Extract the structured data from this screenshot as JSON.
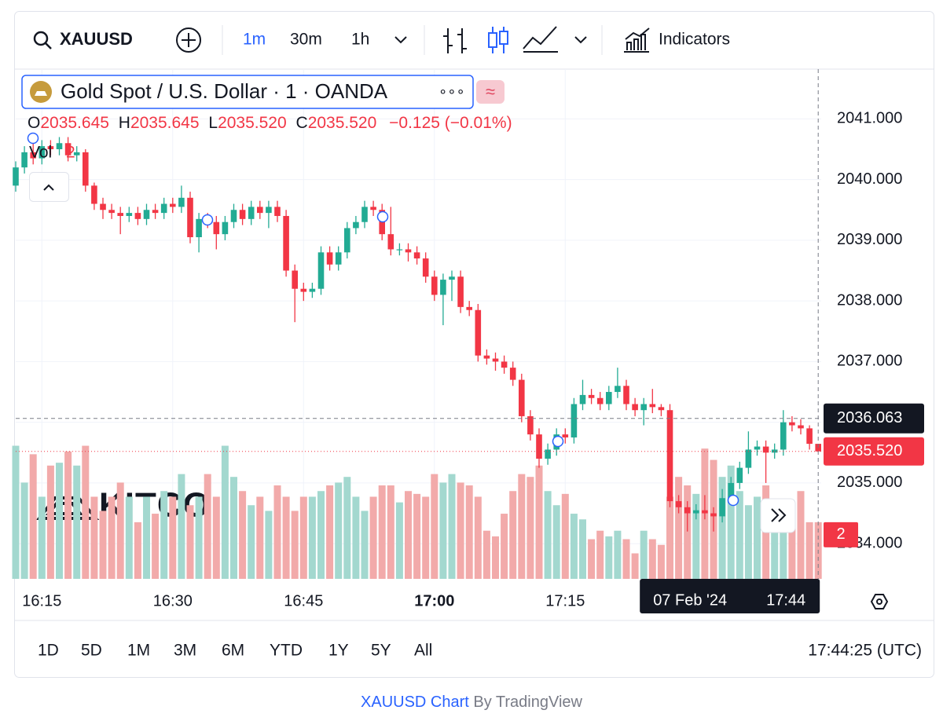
{
  "toolbar": {
    "symbol": "XAUUSD",
    "intervals": [
      "1m",
      "30m",
      "1h"
    ],
    "indicators": "Indicators"
  },
  "legend": {
    "title": "Gold Spot / U.S. Dollar · 1 · OANDA",
    "more": "∘∘∘",
    "ohlc": [
      {
        "label": "O",
        "value": "2035.645"
      },
      {
        "label": "H",
        "value": "2035.645"
      },
      {
        "label": "L",
        "value": "2035.520"
      },
      {
        "label": "C",
        "value": "2035.520"
      }
    ],
    "change": "−0.125 (−0.01%)",
    "volume_label": "Vol"
  },
  "watermark": "KITCO",
  "chart_data": {
    "type": "candlestick",
    "up_color": "#22ab94",
    "down_color": "#f23645",
    "volume_up_color": "#a3d8cf",
    "volume_down_color": "#f2aaaa",
    "ylim": [
      2033.42,
      2041.82
    ],
    "yticks": [
      {
        "value": 2034,
        "label": "2034.000"
      },
      {
        "value": 2035,
        "label": "2035.000"
      },
      {
        "value": 2036,
        "label": "2036.000"
      },
      {
        "value": 2037,
        "label": "2037.000"
      },
      {
        "value": 2038,
        "label": "2038.000"
      },
      {
        "value": 2039,
        "label": "2039.000"
      },
      {
        "value": 2040,
        "label": "2040.000"
      },
      {
        "value": 2041,
        "label": "2041.000"
      }
    ],
    "vlim": [
      0,
      18
    ],
    "categories": [
      null,
      null,
      null,
      "16:15",
      null,
      null,
      null,
      null,
      null,
      null,
      null,
      null,
      null,
      null,
      null,
      null,
      null,
      null,
      "16:30",
      null,
      null,
      null,
      null,
      null,
      null,
      null,
      null,
      null,
      null,
      null,
      null,
      null,
      null,
      "16:45",
      null,
      null,
      null,
      null,
      null,
      null,
      null,
      null,
      null,
      null,
      null,
      null,
      null,
      null,
      "17:00",
      null,
      null,
      null,
      null,
      null,
      null,
      null,
      null,
      null,
      null,
      null,
      null,
      null,
      null,
      "17:15",
      null,
      null,
      null,
      null,
      null,
      null,
      null,
      null,
      null,
      null,
      null,
      null,
      null,
      null,
      null,
      null,
      null,
      null,
      null,
      null,
      null,
      null,
      null,
      null,
      null,
      null,
      null,
      null,
      null
    ],
    "open": [
      2039.9,
      2040.2,
      2040.45,
      2040.35,
      2040.55,
      2040.5,
      2040.6,
      2040.4,
      2040.45,
      2039.9,
      2039.6,
      2039.5,
      2039.45,
      2039.4,
      2039.45,
      2039.35,
      2039.5,
      2039.45,
      2039.6,
      2039.55,
      2039.7,
      2039.05,
      2039.35,
      2039.3,
      2039.1,
      2039.3,
      2039.5,
      2039.35,
      2039.55,
      2039.45,
      2039.55,
      2039.4,
      2038.5,
      2038.2,
      2038.15,
      2038.2,
      2038.8,
      2038.6,
      2038.8,
      2039.2,
      2039.3,
      2039.55,
      2039.5,
      2039.1,
      2038.85,
      2038.85,
      2038.8,
      2038.7,
      2038.4,
      2038.1,
      2038.35,
      2038.4,
      2037.9,
      2037.85,
      2037.1,
      2037.05,
      2037.0,
      2036.9,
      2036.7,
      2036.1,
      2035.8,
      2035.4,
      2035.55,
      2035.8,
      2035.75,
      2036.3,
      2036.45,
      2036.4,
      2036.3,
      2036.5,
      2036.6,
      2036.3,
      2036.2,
      2036.3,
      2036.25,
      2036.2,
      2034.7,
      2034.6,
      2034.5,
      2034.55,
      2034.5,
      2034.45,
      2034.75,
      2035.0,
      2035.25,
      2035.55,
      2035.6,
      2035.5,
      2035.55,
      2036.0,
      2035.95,
      2035.9,
      2035.645
    ],
    "high": [
      2040.3,
      2040.55,
      2040.75,
      2040.65,
      2040.65,
      2040.7,
      2040.7,
      2040.55,
      2040.5,
      2039.95,
      2039.7,
      2039.6,
      2039.55,
      2039.55,
      2039.55,
      2039.6,
      2039.6,
      2039.7,
      2039.7,
      2039.9,
      2039.8,
      2039.45,
      2039.45,
      2039.4,
      2039.4,
      2039.6,
      2039.6,
      2039.65,
      2039.65,
      2039.65,
      2039.65,
      2039.5,
      2038.6,
      2038.3,
      2038.3,
      2038.9,
      2038.9,
      2038.9,
      2039.3,
      2039.4,
      2039.65,
      2039.65,
      2039.6,
      2039.55,
      2038.95,
      2038.95,
      2038.9,
      2038.8,
      2038.5,
      2038.45,
      2038.5,
      2038.5,
      2038.0,
      2037.95,
      2037.2,
      2037.15,
      2037.1,
      2037.0,
      2036.8,
      2036.2,
      2035.9,
      2035.65,
      2035.9,
      2035.9,
      2036.4,
      2036.7,
      2036.55,
      2036.5,
      2036.6,
      2036.9,
      2036.7,
      2036.4,
      2036.4,
      2036.55,
      2036.3,
      2036.3,
      2034.8,
      2034.7,
      2034.65,
      2034.8,
      2034.6,
      2034.9,
      2035.1,
      2035.35,
      2035.85,
      2035.7,
      2035.7,
      2035.65,
      2036.2,
      2036.1,
      2036.05,
      2035.95,
      2035.645
    ],
    "low": [
      2039.8,
      2040.1,
      2040.25,
      2040.25,
      2040.4,
      2040.4,
      2040.3,
      2040.3,
      2039.8,
      2039.5,
      2039.35,
      2039.35,
      2039.1,
      2039.3,
      2039.25,
      2039.25,
      2039.35,
      2039.35,
      2039.45,
      2039.45,
      2038.95,
      2038.8,
      2039.2,
      2038.85,
      2039.0,
      2039.2,
      2039.25,
      2039.25,
      2039.35,
      2039.2,
      2039.3,
      2038.4,
      2037.65,
      2038.0,
      2038.05,
      2038.1,
      2038.5,
      2038.5,
      2038.7,
      2039.1,
      2039.2,
      2039.4,
      2039.0,
      2038.75,
      2038.75,
      2038.65,
      2038.6,
      2038.3,
      2038.0,
      2037.6,
      2038.0,
      2037.8,
      2037.75,
      2037.0,
      2036.95,
      2036.85,
      2036.8,
      2036.6,
      2036.0,
      2035.7,
      2035.25,
      2035.3,
      2035.45,
      2035.65,
      2035.65,
      2036.2,
      2036.3,
      2036.2,
      2036.2,
      2036.4,
      2036.2,
      2036.1,
      2035.95,
      2036.15,
      2036.1,
      2034.6,
      2034.5,
      2034.2,
      2034.4,
      2034.4,
      2034.2,
      2034.35,
      2034.65,
      2034.9,
      2035.15,
      2035.45,
      2035.0,
      2035.4,
      2035.45,
      2035.85,
      2035.8,
      2035.55,
      2035.52
    ],
    "close": [
      2040.2,
      2040.45,
      2040.35,
      2040.55,
      2040.5,
      2040.6,
      2040.4,
      2040.45,
      2039.9,
      2039.6,
      2039.5,
      2039.45,
      2039.4,
      2039.45,
      2039.35,
      2039.5,
      2039.45,
      2039.6,
      2039.55,
      2039.7,
      2039.05,
      2039.35,
      2039.3,
      2039.1,
      2039.3,
      2039.5,
      2039.35,
      2039.55,
      2039.45,
      2039.55,
      2039.4,
      2038.5,
      2038.2,
      2038.15,
      2038.2,
      2038.8,
      2038.6,
      2038.8,
      2039.2,
      2039.3,
      2039.55,
      2039.5,
      2039.1,
      2038.85,
      2038.85,
      2038.8,
      2038.7,
      2038.4,
      2038.1,
      2038.35,
      2038.4,
      2037.9,
      2037.85,
      2037.1,
      2037.05,
      2037.0,
      2036.9,
      2036.7,
      2036.1,
      2035.8,
      2035.4,
      2035.55,
      2035.8,
      2035.75,
      2036.3,
      2036.45,
      2036.4,
      2036.3,
      2036.5,
      2036.6,
      2036.3,
      2036.2,
      2036.3,
      2036.25,
      2036.2,
      2034.7,
      2034.6,
      2034.5,
      2034.55,
      2034.5,
      2034.45,
      2034.75,
      2035.0,
      2035.25,
      2035.55,
      2035.6,
      2035.5,
      2035.55,
      2036.0,
      2035.95,
      2035.9,
      2035.645,
      2035.52
    ],
    "volume": [
      4.7,
      3.4,
      4.4,
      2.9,
      4.0,
      4.1,
      4.5,
      4.0,
      4.7,
      2.9,
      2.4,
      2.9,
      3.4,
      2.9,
      2.0,
      2.9,
      2.3,
      3.1,
      2.9,
      3.7,
      2.6,
      2.9,
      3.7,
      2.9,
      4.7,
      3.6,
      3.1,
      2.6,
      2.9,
      2.4,
      3.3,
      2.9,
      2.4,
      2.9,
      2.9,
      3.1,
      3.3,
      3.4,
      3.6,
      2.9,
      2.4,
      2.9,
      3.3,
      3.3,
      2.7,
      3.1,
      3.0,
      2.9,
      3.7,
      3.4,
      3.7,
      3.4,
      3.3,
      2.9,
      1.7,
      1.5,
      2.3,
      3.1,
      3.7,
      3.6,
      4.0,
      3.1,
      2.6,
      3.0,
      2.3,
      2.1,
      1.4,
      1.7,
      1.5,
      1.7,
      1.4,
      0.9,
      1.7,
      1.4,
      1.2,
      2.9,
      3.6,
      3.3,
      3.0,
      4.6,
      4.2,
      3.6,
      4.0,
      3.1,
      2.6,
      2.9,
      3.3,
      2.6,
      2.0,
      2.4,
      3.1,
      2.0,
      2
    ],
    "crosshair": {
      "value": 2036.063,
      "label": "2036.063",
      "date": "07 Feb '24",
      "time": "17:44"
    },
    "last_price": {
      "value": 2035.52,
      "label": "2035.520"
    }
  },
  "range_bar": {
    "ranges": [
      "1D",
      "5D",
      "1M",
      "3M",
      "6M",
      "YTD",
      "1Y",
      "5Y",
      "All"
    ],
    "clock": "17:44:25 (UTC)"
  },
  "footer": {
    "link": "XAUUSD Chart",
    "by": "By TradingView"
  }
}
